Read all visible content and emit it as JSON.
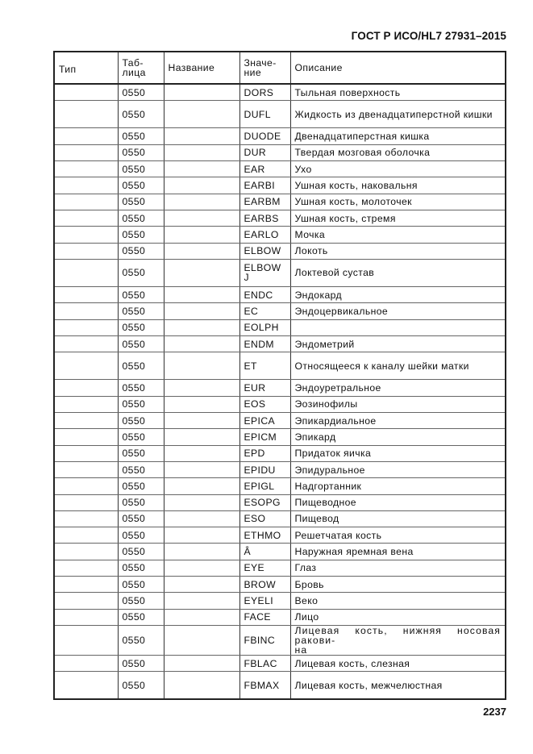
{
  "header": {
    "standard": "ГОСТ Р ИСО/HL7 27931–2015"
  },
  "table": {
    "columns": [
      "Тип",
      "Таб-\nлица",
      "Название",
      "Значе-\nние",
      "Описание"
    ],
    "rows": [
      {
        "type": "",
        "table": "0550",
        "name": "",
        "value": "DORS",
        "description": "Тыльная поверхность",
        "tall": false
      },
      {
        "type": "",
        "table": "0550",
        "name": "",
        "value": "DUFL",
        "description": "Жидкость из двенадцатиперстной кишки",
        "tall": true
      },
      {
        "type": "",
        "table": "0550",
        "name": "",
        "value": "DUODE",
        "description": "Двенадцатиперстная кишка",
        "tall": false
      },
      {
        "type": "",
        "table": "0550",
        "name": "",
        "value": "DUR",
        "description": "Твердая мозговая оболочка",
        "tall": false
      },
      {
        "type": "",
        "table": "0550",
        "name": "",
        "value": "EAR",
        "description": "Ухо",
        "tall": false
      },
      {
        "type": "",
        "table": "0550",
        "name": "",
        "value": "EARBI",
        "description": "Ушная кость, наковальня",
        "tall": false
      },
      {
        "type": "",
        "table": "0550",
        "name": "",
        "value": "EARBM",
        "description": "Ушная кость, молоточек",
        "tall": false
      },
      {
        "type": "",
        "table": "0550",
        "name": "",
        "value": "EARBS",
        "description": "Ушная кость, стремя",
        "tall": false
      },
      {
        "type": "",
        "table": "0550",
        "name": "",
        "value": "EARLO",
        "description": "Мочка",
        "tall": false
      },
      {
        "type": "",
        "table": "0550",
        "name": "",
        "value": "ELBOW",
        "description": "Локоть",
        "tall": false
      },
      {
        "type": "",
        "table": "0550",
        "name": "",
        "value": "ELBOW\nJ",
        "description": "Локтевой сустав",
        "tall": true
      },
      {
        "type": "",
        "table": "0550",
        "name": "",
        "value": "ENDC",
        "description": "Эндокард",
        "tall": false
      },
      {
        "type": "",
        "table": "0550",
        "name": "",
        "value": "EC",
        "description": "Эндоцервикальное",
        "tall": false
      },
      {
        "type": "",
        "table": "0550",
        "name": "",
        "value": "EOLPH",
        "description": "",
        "tall": false
      },
      {
        "type": "",
        "table": "0550",
        "name": "",
        "value": "ENDM",
        "description": "Эндометрий",
        "tall": false
      },
      {
        "type": "",
        "table": "0550",
        "name": "",
        "value": "ET",
        "description": "Относящееся к каналу шейки матки",
        "tall": true
      },
      {
        "type": "",
        "table": "0550",
        "name": "",
        "value": "EUR",
        "description": "Эндоуретральное",
        "tall": false
      },
      {
        "type": "",
        "table": "0550",
        "name": "",
        "value": "EOS",
        "description": "Эозинофилы",
        "tall": false
      },
      {
        "type": "",
        "table": "0550",
        "name": "",
        "value": "EPICA",
        "description": "Эпикардиальное",
        "tall": false
      },
      {
        "type": "",
        "table": "0550",
        "name": "",
        "value": "EPICM",
        "description": "Эпикард",
        "tall": false
      },
      {
        "type": "",
        "table": "0550",
        "name": "",
        "value": "EPD",
        "description": "Придаток яичка",
        "tall": false
      },
      {
        "type": "",
        "table": "0550",
        "name": "",
        "value": "EPIDU",
        "description": "Эпидуральное",
        "tall": false
      },
      {
        "type": "",
        "table": "0550",
        "name": "",
        "value": "EPIGL",
        "description": "Надгортанник",
        "tall": false
      },
      {
        "type": "",
        "table": "0550",
        "name": "",
        "value": "ESOPG",
        "description": "Пищеводное",
        "tall": false
      },
      {
        "type": "",
        "table": "0550",
        "name": "",
        "value": "ESO",
        "description": "Пищевод",
        "tall": false
      },
      {
        "type": "",
        "table": "0550",
        "name": "",
        "value": "ETHMO",
        "description": "Решетчатая кость",
        "tall": false
      },
      {
        "type": "",
        "table": "0550",
        "name": "",
        "value": "Â",
        "description": "Наружная яремная вена",
        "tall": false
      },
      {
        "type": "",
        "table": "0550",
        "name": "",
        "value": "EYE",
        "description": "Глаз",
        "tall": false
      },
      {
        "type": "",
        "table": "0550",
        "name": "",
        "value": "BROW",
        "description": "Бровь",
        "tall": false
      },
      {
        "type": "",
        "table": "0550",
        "name": "",
        "value": "EYELI",
        "description": "Веко",
        "tall": false
      },
      {
        "type": "",
        "table": "0550",
        "name": "",
        "value": "FACE",
        "description": "Лицо",
        "tall": false
      },
      {
        "type": "",
        "table": "0550",
        "name": "",
        "value": "FBINC",
        "description": "Лицевая кость, нижняя носовая ракови-\nна",
        "tall": true
      },
      {
        "type": "",
        "table": "0550",
        "name": "",
        "value": "FBLAC",
        "description": "Лицевая кость, слезная",
        "tall": false
      },
      {
        "type": "",
        "table": "0550",
        "name": "",
        "value": "FBMAX",
        "description": "Лицевая кость, межчелюстная",
        "tall": true
      }
    ]
  },
  "footer": {
    "page_number": "2237"
  }
}
